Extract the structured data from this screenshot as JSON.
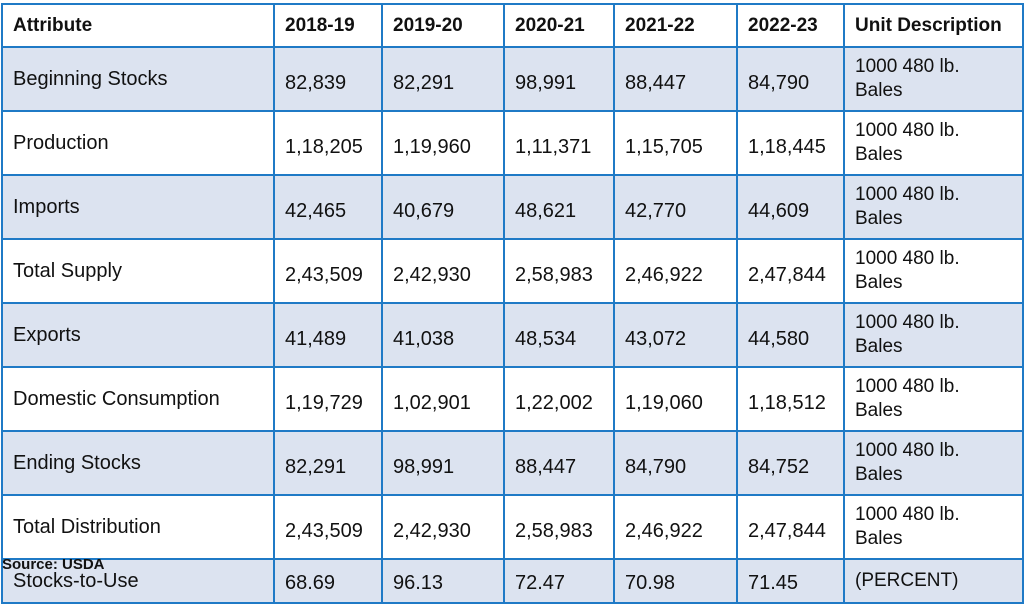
{
  "table": {
    "headers": [
      "Attribute",
      "2018-19",
      "2019-20",
      "2020-21",
      "2021-22",
      "2022-23",
      "Unit Description"
    ],
    "rows": [
      {
        "attribute": "Beginning Stocks",
        "values": [
          "82,839",
          "82,291",
          "98,991",
          "88,447",
          "84,790"
        ],
        "unit": "1000 480 lb. Bales"
      },
      {
        "attribute": "Production",
        "values": [
          "1,18,205",
          "1,19,960",
          "1,11,371",
          "1,15,705",
          "1,18,445"
        ],
        "unit": "1000 480 lb. Bales"
      },
      {
        "attribute": "Imports",
        "values": [
          "42,465",
          "40,679",
          "48,621",
          "42,770",
          "44,609"
        ],
        "unit": "1000 480 lb. Bales"
      },
      {
        "attribute": "Total Supply",
        "values": [
          "2,43,509",
          "2,42,930",
          "2,58,983",
          "2,46,922",
          "2,47,844"
        ],
        "unit": "1000 480 lb. Bales"
      },
      {
        "attribute": "Exports",
        "values": [
          "41,489",
          "41,038",
          "48,534",
          "43,072",
          "44,580"
        ],
        "unit": "1000 480 lb. Bales"
      },
      {
        "attribute": "Domestic Consumption",
        "values": [
          "1,19,729",
          "1,02,901",
          "1,22,002",
          "1,19,060",
          "1,18,512"
        ],
        "unit": "1000 480 lb. Bales"
      },
      {
        "attribute": "Ending Stocks",
        "values": [
          "82,291",
          "98,991",
          "88,447",
          "84,790",
          "84,752"
        ],
        "unit": "1000 480 lb. Bales"
      },
      {
        "attribute": "Total Distribution",
        "values": [
          "2,43,509",
          "2,42,930",
          "2,58,983",
          "2,46,922",
          "2,47,844"
        ],
        "unit": "1000 480 lb. Bales"
      },
      {
        "attribute": "Stocks-to-Use",
        "values": [
          "68.69",
          "96.13",
          "72.47",
          "70.98",
          "71.45"
        ],
        "unit": "(PERCENT)"
      }
    ]
  },
  "source": "Source: USDA",
  "colors": {
    "border": "#1f7ac6",
    "shaded_row": "#dce3f0",
    "plain_row": "#ffffff"
  }
}
